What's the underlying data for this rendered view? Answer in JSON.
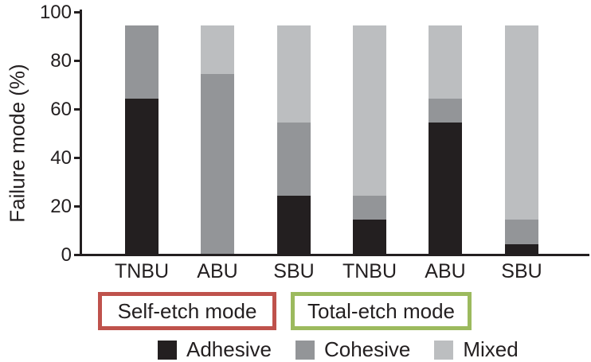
{
  "chart_data": {
    "type": "bar",
    "stacked": true,
    "title": "",
    "ylabel": "Failure mode (%)",
    "xlabel": "",
    "ylim": [
      0,
      100
    ],
    "yticks": [
      0,
      20,
      40,
      60,
      80,
      100
    ],
    "grid": false,
    "categories": [
      "TNBU",
      "ABU",
      "SBU",
      "TNBU",
      "ABU",
      "SBU"
    ],
    "series": [
      {
        "name": "Adhesive",
        "color": "#231f20",
        "values": [
          64,
          0,
          24,
          14,
          54,
          4
        ]
      },
      {
        "name": "Cohesive",
        "color": "#939598",
        "values": [
          30,
          74,
          30,
          10,
          10,
          10
        ]
      },
      {
        "name": "Mixed",
        "color": "#bcbec0",
        "values": [
          0,
          20,
          40,
          70,
          30,
          80
        ]
      }
    ],
    "bar_totals": [
      94,
      94,
      94,
      94,
      94,
      94
    ],
    "groups": [
      {
        "label": "Self-etch mode",
        "border_color": "#bf524c",
        "categories": [
          "TNBU",
          "ABU",
          "SBU"
        ]
      },
      {
        "label": "Total-etch mode",
        "border_color": "#9cba5e",
        "categories": [
          "TNBU",
          "ABU",
          "SBU"
        ]
      }
    ],
    "legend": {
      "position": "bottom",
      "entries": [
        "Adhesive",
        "Cohesive",
        "Mixed"
      ]
    },
    "text_color": "#231f20",
    "axis_color": "#231f20"
  }
}
